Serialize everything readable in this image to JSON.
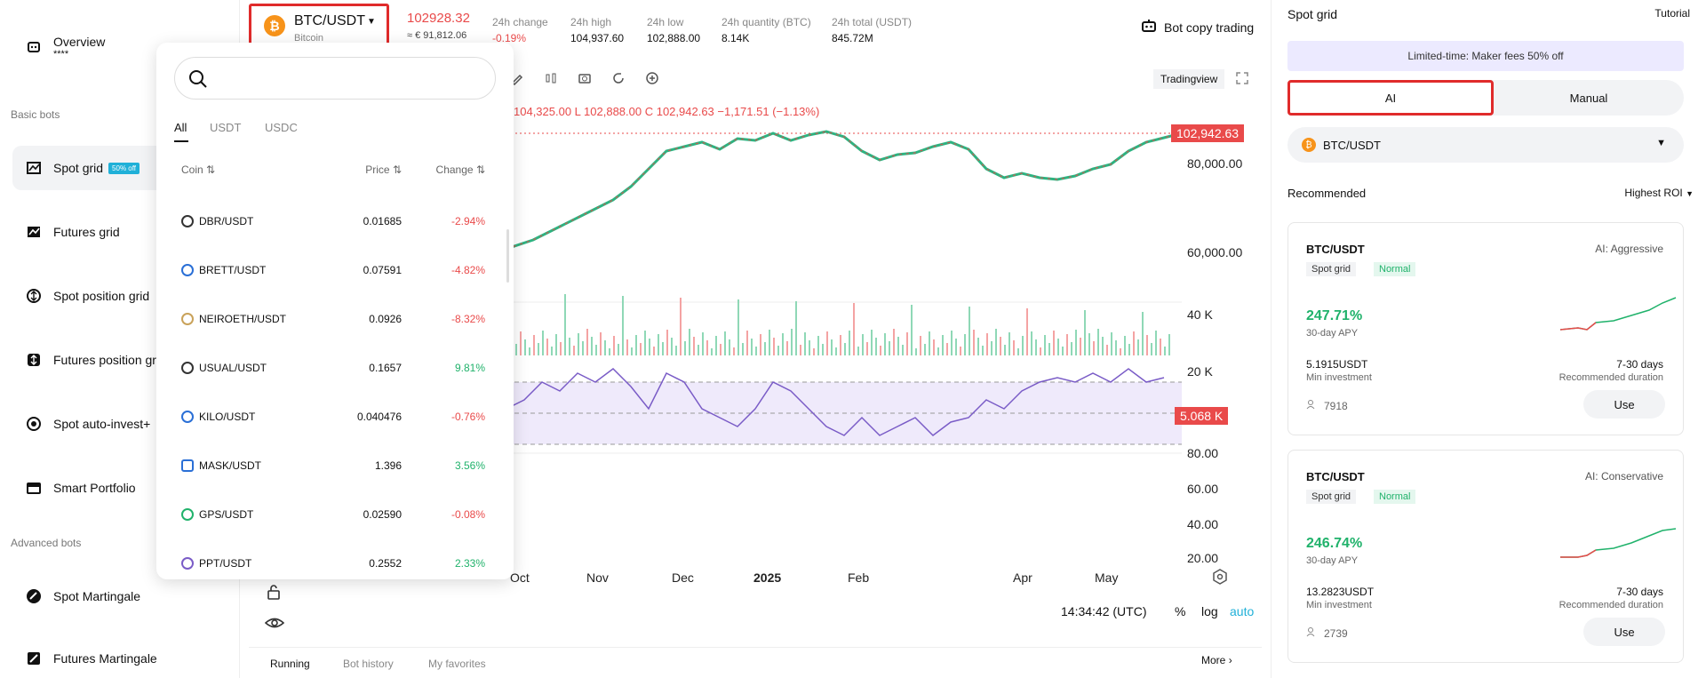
{
  "sidebar": {
    "overview": {
      "label": "Overview",
      "sub": "****"
    },
    "basic_bots_label": "Basic bots",
    "items": [
      {
        "label": "Spot grid",
        "badge": "50% off"
      },
      {
        "label": "Futures grid"
      },
      {
        "label": "Spot position grid"
      },
      {
        "label": "Futures position grid"
      },
      {
        "label": "Spot auto-invest+"
      },
      {
        "label": "Smart Portfolio"
      }
    ],
    "advanced_bots_label": "Advanced bots",
    "advanced_items": [
      {
        "label": "Spot Martingale"
      },
      {
        "label": "Futures Martingale"
      }
    ]
  },
  "topbar": {
    "pair": "BTC/USDT",
    "pair_name": "Bitcoin",
    "last_price": "102928.32",
    "last_price_eur": "≈ € 91,812.06",
    "stats": [
      {
        "label": "24h change",
        "value": "-0.19%",
        "negative": true
      },
      {
        "label": "24h high",
        "value": "104,937.60"
      },
      {
        "label": "24h low",
        "value": "102,888.00"
      },
      {
        "label": "24h quantity (BTC)",
        "value": "8.14K"
      },
      {
        "label": "24h total (USDT)",
        "value": "845.72M"
      }
    ],
    "copy_trading": "Bot copy trading"
  },
  "chart": {
    "provider": "Tradingview",
    "ohlc_text": "104,325.00  L 102,888.00  C 102,942.63  −1,171.51 (−1.13%)",
    "price_tag": "102,942.63",
    "y_ticks": [
      "80,000.00",
      "60,000.00"
    ],
    "vol_ticks": [
      "40 K",
      "20 K"
    ],
    "vol_tag": "5.068 K",
    "rsi_ticks": [
      "80.00",
      "60.00",
      "40.00",
      "20.00"
    ],
    "x_ticks": [
      "Oct",
      "Nov",
      "Dec",
      "2025",
      "Feb",
      "Apr",
      "May"
    ],
    "time": "14:34:42 (UTC)",
    "opts": [
      "%",
      "log",
      "auto"
    ]
  },
  "dropdown": {
    "search_placeholder": "",
    "tabs": [
      "All",
      "USDT",
      "USDC"
    ],
    "columns": {
      "coin": "Coin",
      "price": "Price",
      "change": "Change"
    },
    "rows": [
      {
        "coin": "DBR/USDT",
        "price": "0.01685",
        "change": "-2.94%",
        "neg": true
      },
      {
        "coin": "BRETT/USDT",
        "price": "0.07591",
        "change": "-4.82%",
        "neg": true
      },
      {
        "coin": "NEIROETH/USDT",
        "price": "0.0926",
        "change": "-8.32%",
        "neg": true
      },
      {
        "coin": "USUAL/USDT",
        "price": "0.1657",
        "change": "9.81%",
        "neg": false
      },
      {
        "coin": "KILO/USDT",
        "price": "0.040476",
        "change": "-0.76%",
        "neg": true
      },
      {
        "coin": "MASK/USDT",
        "price": "1.396",
        "change": "3.56%",
        "neg": false
      },
      {
        "coin": "GPS/USDT",
        "price": "0.02590",
        "change": "-0.08%",
        "neg": true
      },
      {
        "coin": "PPT/USDT",
        "price": "0.2552",
        "change": "2.33%",
        "neg": false
      }
    ]
  },
  "right": {
    "title": "Spot grid",
    "tutorial": "Tutorial",
    "promo": "Limited-time: Maker fees 50% off",
    "toggle_ai": "AI",
    "toggle_manual": "Manual",
    "pair": "BTC/USDT",
    "recommended": "Recommended",
    "sort": "Highest ROI",
    "cards": [
      {
        "pair": "BTC/USDT",
        "risk": "AI: Aggressive",
        "tag1": "Spot grid",
        "tag2": "Normal",
        "apy": "247.71%",
        "apy_label": "30-day APY",
        "inv": "5.1915USDT",
        "inv_label": "Min investment",
        "dur": "7-30 days",
        "dur_label": "Recommended duration",
        "users": "7918",
        "use": "Use"
      },
      {
        "pair": "BTC/USDT",
        "risk": "AI: Conservative",
        "tag1": "Spot grid",
        "tag2": "Normal",
        "apy": "246.74%",
        "apy_label": "30-day APY",
        "inv": "13.2823USDT",
        "inv_label": "Min investment",
        "dur": "7-30 days",
        "dur_label": "Recommended duration",
        "users": "2739",
        "use": "Use"
      }
    ]
  },
  "bottom_tabs": [
    "Running",
    "Bot history",
    "My favorites"
  ],
  "more": "More"
}
